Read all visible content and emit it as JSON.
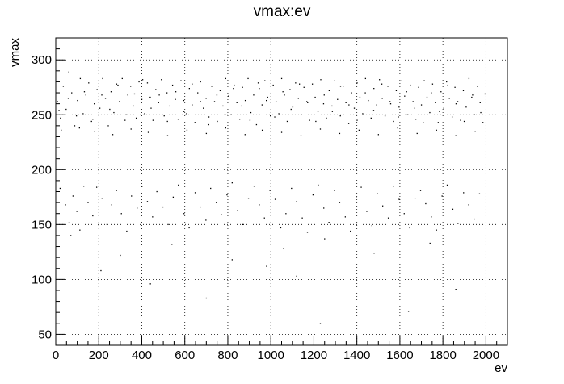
{
  "chart_data": {
    "type": "scatter",
    "title": "vmax:ev",
    "xlabel": "ev",
    "ylabel": "vmax",
    "xlim": [
      0,
      2100
    ],
    "ylim": [
      40,
      320
    ],
    "xticks": [
      0,
      200,
      400,
      600,
      800,
      1000,
      1200,
      1400,
      1600,
      1800,
      2000
    ],
    "yticks": [
      50,
      100,
      150,
      200,
      250,
      300
    ],
    "xtick_labels": [
      "0",
      "200",
      "400",
      "600",
      "800",
      "1000",
      "1200",
      "1400",
      "1600",
      "1800",
      "2000"
    ],
    "ytick_labels": [
      "50",
      "100",
      "150",
      "200",
      "250",
      "300"
    ],
    "grid": true,
    "marker_color": "#000000",
    "points": [
      [
        8,
        262
      ],
      [
        22,
        247
      ],
      [
        35,
        276
      ],
      [
        48,
        255
      ],
      [
        61,
        289
      ],
      [
        74,
        270
      ],
      [
        88,
        240
      ],
      [
        101,
        263
      ],
      [
        114,
        283
      ],
      [
        127,
        251
      ],
      [
        140,
        268
      ],
      [
        153,
        279
      ],
      [
        166,
        244
      ],
      [
        179,
        260
      ],
      [
        192,
        273
      ],
      [
        205,
        256
      ],
      [
        218,
        283
      ],
      [
        231,
        265
      ],
      [
        244,
        240
      ],
      [
        257,
        271
      ],
      [
        270,
        252
      ],
      [
        283,
        278
      ],
      [
        296,
        262
      ],
      [
        309,
        283
      ],
      [
        322,
        245
      ],
      [
        335,
        268
      ],
      [
        348,
        276
      ],
      [
        361,
        258
      ],
      [
        374,
        247
      ],
      [
        387,
        280
      ],
      [
        400,
        264
      ],
      [
        413,
        251
      ],
      [
        426,
        279
      ],
      [
        439,
        266
      ],
      [
        452,
        245
      ],
      [
        465,
        273
      ],
      [
        478,
        261
      ],
      [
        491,
        282
      ],
      [
        504,
        249
      ],
      [
        517,
        270
      ],
      [
        530,
        258
      ],
      [
        543,
        277
      ],
      [
        556,
        264
      ],
      [
        569,
        246
      ],
      [
        582,
        281
      ],
      [
        595,
        263
      ],
      [
        608,
        251
      ],
      [
        621,
        274
      ],
      [
        634,
        259
      ],
      [
        647,
        243
      ],
      [
        660,
        270
      ],
      [
        673,
        280
      ],
      [
        686,
        256
      ],
      [
        699,
        265
      ],
      [
        712,
        248
      ],
      [
        725,
        276
      ],
      [
        738,
        262
      ],
      [
        751,
        244
      ],
      [
        764,
        272
      ],
      [
        777,
        258
      ],
      [
        790,
        283
      ],
      [
        803,
        267
      ],
      [
        816,
        250
      ],
      [
        829,
        277
      ],
      [
        842,
        261
      ],
      [
        855,
        246
      ],
      [
        868,
        275
      ],
      [
        881,
        263
      ],
      [
        894,
        283
      ],
      [
        907,
        252
      ],
      [
        920,
        268
      ],
      [
        933,
        241
      ],
      [
        946,
        274
      ],
      [
        959,
        259
      ],
      [
        972,
        281
      ],
      [
        985,
        266
      ],
      [
        998,
        249
      ],
      [
        1011,
        277
      ],
      [
        1024,
        262
      ],
      [
        1037,
        251
      ],
      [
        1050,
        283
      ],
      [
        1063,
        268
      ],
      [
        1076,
        244
      ],
      [
        1089,
        273
      ],
      [
        1102,
        257
      ],
      [
        1115,
        279
      ],
      [
        1128,
        265
      ],
      [
        1141,
        250
      ],
      [
        1154,
        275
      ],
      [
        1167,
        262
      ],
      [
        1180,
        245
      ],
      [
        1193,
        278
      ],
      [
        1206,
        266
      ],
      [
        1219,
        253
      ],
      [
        1232,
        282
      ],
      [
        1245,
        260
      ],
      [
        1258,
        247
      ],
      [
        1271,
        272
      ],
      [
        1284,
        258
      ],
      [
        1297,
        281
      ],
      [
        1310,
        264
      ],
      [
        1323,
        249
      ],
      [
        1336,
        276
      ],
      [
        1349,
        261
      ],
      [
        1362,
        242
      ],
      [
        1375,
        270
      ],
      [
        1388,
        256
      ],
      [
        1401,
        279
      ],
      [
        1414,
        266
      ],
      [
        1427,
        251
      ],
      [
        1440,
        283
      ],
      [
        1453,
        263
      ],
      [
        1466,
        247
      ],
      [
        1479,
        274
      ],
      [
        1492,
        259
      ],
      [
        1505,
        282
      ],
      [
        1518,
        265
      ],
      [
        1531,
        249
      ],
      [
        1544,
        276
      ],
      [
        1557,
        260
      ],
      [
        1570,
        244
      ],
      [
        1583,
        272
      ],
      [
        1596,
        257
      ],
      [
        1609,
        281
      ],
      [
        1622,
        267
      ],
      [
        1635,
        250
      ],
      [
        1648,
        277
      ],
      [
        1661,
        262
      ],
      [
        1674,
        246
      ],
      [
        1687,
        275
      ],
      [
        1700,
        259
      ],
      [
        1713,
        281
      ],
      [
        1726,
        266
      ],
      [
        1739,
        252
      ],
      [
        1752,
        278
      ],
      [
        1765,
        261
      ],
      [
        1778,
        243
      ],
      [
        1791,
        271
      ],
      [
        1804,
        256
      ],
      [
        1817,
        280
      ],
      [
        1830,
        265
      ],
      [
        1843,
        248
      ],
      [
        1856,
        275
      ],
      [
        1869,
        262
      ],
      [
        1882,
        245
      ],
      [
        1895,
        272
      ],
      [
        1908,
        257
      ],
      [
        1921,
        283
      ],
      [
        1934,
        266
      ],
      [
        1947,
        250
      ],
      [
        1960,
        276
      ],
      [
        1973,
        261
      ],
      [
        1986,
        243
      ],
      [
        1996,
        269
      ],
      [
        15,
        254
      ],
      [
        58,
        265
      ],
      [
        96,
        249
      ],
      [
        133,
        271
      ],
      [
        172,
        246
      ],
      [
        214,
        268
      ],
      [
        251,
        255
      ],
      [
        289,
        277
      ],
      [
        327,
        250
      ],
      [
        366,
        269
      ],
      [
        404,
        282
      ],
      [
        443,
        256
      ],
      [
        481,
        268
      ],
      [
        519,
        244
      ],
      [
        558,
        271
      ],
      [
        596,
        253
      ],
      [
        634,
        278
      ],
      [
        673,
        262
      ],
      [
        711,
        241
      ],
      [
        749,
        268
      ],
      [
        788,
        250
      ],
      [
        826,
        274
      ],
      [
        864,
        258
      ],
      [
        903,
        245
      ],
      [
        941,
        279
      ],
      [
        979,
        263
      ],
      [
        1018,
        248
      ],
      [
        1056,
        271
      ],
      [
        1094,
        255
      ],
      [
        1133,
        278
      ],
      [
        1171,
        261
      ],
      [
        1209,
        244
      ],
      [
        1248,
        268
      ],
      [
        1286,
        253
      ],
      [
        1324,
        276
      ],
      [
        1363,
        259
      ],
      [
        1401,
        245
      ],
      [
        1439,
        270
      ],
      [
        1478,
        254
      ],
      [
        1516,
        278
      ],
      [
        1554,
        262
      ],
      [
        1593,
        248
      ],
      [
        1631,
        271
      ],
      [
        1669,
        256
      ],
      [
        1708,
        243
      ],
      [
        1746,
        270
      ],
      [
        1784,
        253
      ],
      [
        1823,
        277
      ],
      [
        1861,
        260
      ],
      [
        1899,
        244
      ],
      [
        1938,
        268
      ],
      [
        1976,
        252
      ],
      [
        25,
        236
      ],
      [
        110,
        238
      ],
      [
        180,
        235
      ],
      [
        265,
        232
      ],
      [
        350,
        237
      ],
      [
        430,
        234
      ],
      [
        520,
        231
      ],
      [
        610,
        236
      ],
      [
        700,
        233
      ],
      [
        790,
        238
      ],
      [
        880,
        232
      ],
      [
        960,
        236
      ],
      [
        1050,
        234
      ],
      [
        1140,
        231
      ],
      [
        1230,
        237
      ],
      [
        1320,
        233
      ],
      [
        1410,
        236
      ],
      [
        1500,
        232
      ],
      [
        1590,
        238
      ],
      [
        1680,
        233
      ],
      [
        1770,
        236
      ],
      [
        1860,
        231
      ],
      [
        1950,
        235
      ],
      [
        20,
        183
      ],
      [
        45,
        168
      ],
      [
        62,
        152
      ],
      [
        80,
        176
      ],
      [
        98,
        162
      ],
      [
        112,
        145
      ],
      [
        130,
        185
      ],
      [
        150,
        170
      ],
      [
        172,
        158
      ],
      [
        190,
        184
      ],
      [
        215,
        174
      ],
      [
        238,
        150
      ],
      [
        260,
        168
      ],
      [
        282,
        181
      ],
      [
        305,
        160
      ],
      [
        330,
        144
      ],
      [
        352,
        176
      ],
      [
        378,
        165
      ],
      [
        402,
        185
      ],
      [
        426,
        171
      ],
      [
        450,
        157
      ],
      [
        470,
        180
      ],
      [
        498,
        166
      ],
      [
        522,
        150
      ],
      [
        546,
        175
      ],
      [
        570,
        186
      ],
      [
        596,
        160
      ],
      [
        620,
        147
      ],
      [
        648,
        179
      ],
      [
        672,
        166
      ],
      [
        698,
        154
      ],
      [
        720,
        183
      ],
      [
        746,
        170
      ],
      [
        770,
        159
      ],
      [
        796,
        177
      ],
      [
        820,
        188
      ],
      [
        846,
        163
      ],
      [
        870,
        150
      ],
      [
        896,
        174
      ],
      [
        922,
        185
      ],
      [
        946,
        168
      ],
      [
        970,
        156
      ],
      [
        996,
        181
      ],
      [
        1020,
        173
      ],
      [
        1046,
        147
      ],
      [
        1070,
        160
      ],
      [
        1096,
        183
      ],
      [
        1120,
        171
      ],
      [
        1146,
        156
      ],
      [
        1170,
        143
      ],
      [
        1196,
        177
      ],
      [
        1220,
        186
      ],
      [
        1246,
        165
      ],
      [
        1270,
        152
      ],
      [
        1296,
        181
      ],
      [
        1320,
        170
      ],
      [
        1346,
        157
      ],
      [
        1370,
        144
      ],
      [
        1396,
        175
      ],
      [
        1420,
        184
      ],
      [
        1446,
        162
      ],
      [
        1470,
        149
      ],
      [
        1496,
        178
      ],
      [
        1520,
        167
      ],
      [
        1546,
        156
      ],
      [
        1570,
        185
      ],
      [
        1596,
        173
      ],
      [
        1620,
        160
      ],
      [
        1646,
        147
      ],
      [
        1670,
        174
      ],
      [
        1696,
        181
      ],
      [
        1720,
        169
      ],
      [
        1746,
        157
      ],
      [
        1770,
        145
      ],
      [
        1796,
        176
      ],
      [
        1820,
        186
      ],
      [
        1846,
        164
      ],
      [
        1870,
        151
      ],
      [
        1896,
        179
      ],
      [
        1920,
        168
      ],
      [
        1946,
        155
      ],
      [
        1970,
        178
      ],
      [
        70,
        140
      ],
      [
        300,
        122
      ],
      [
        540,
        132
      ],
      [
        820,
        118
      ],
      [
        1060,
        128
      ],
      [
        1250,
        137
      ],
      [
        1480,
        124
      ],
      [
        1740,
        133
      ],
      [
        210,
        108
      ],
      [
        700,
        83
      ],
      [
        1120,
        103
      ],
      [
        1640,
        71
      ],
      [
        1860,
        91
      ],
      [
        1230,
        60
      ],
      [
        980,
        112
      ],
      [
        440,
        96
      ]
    ]
  }
}
